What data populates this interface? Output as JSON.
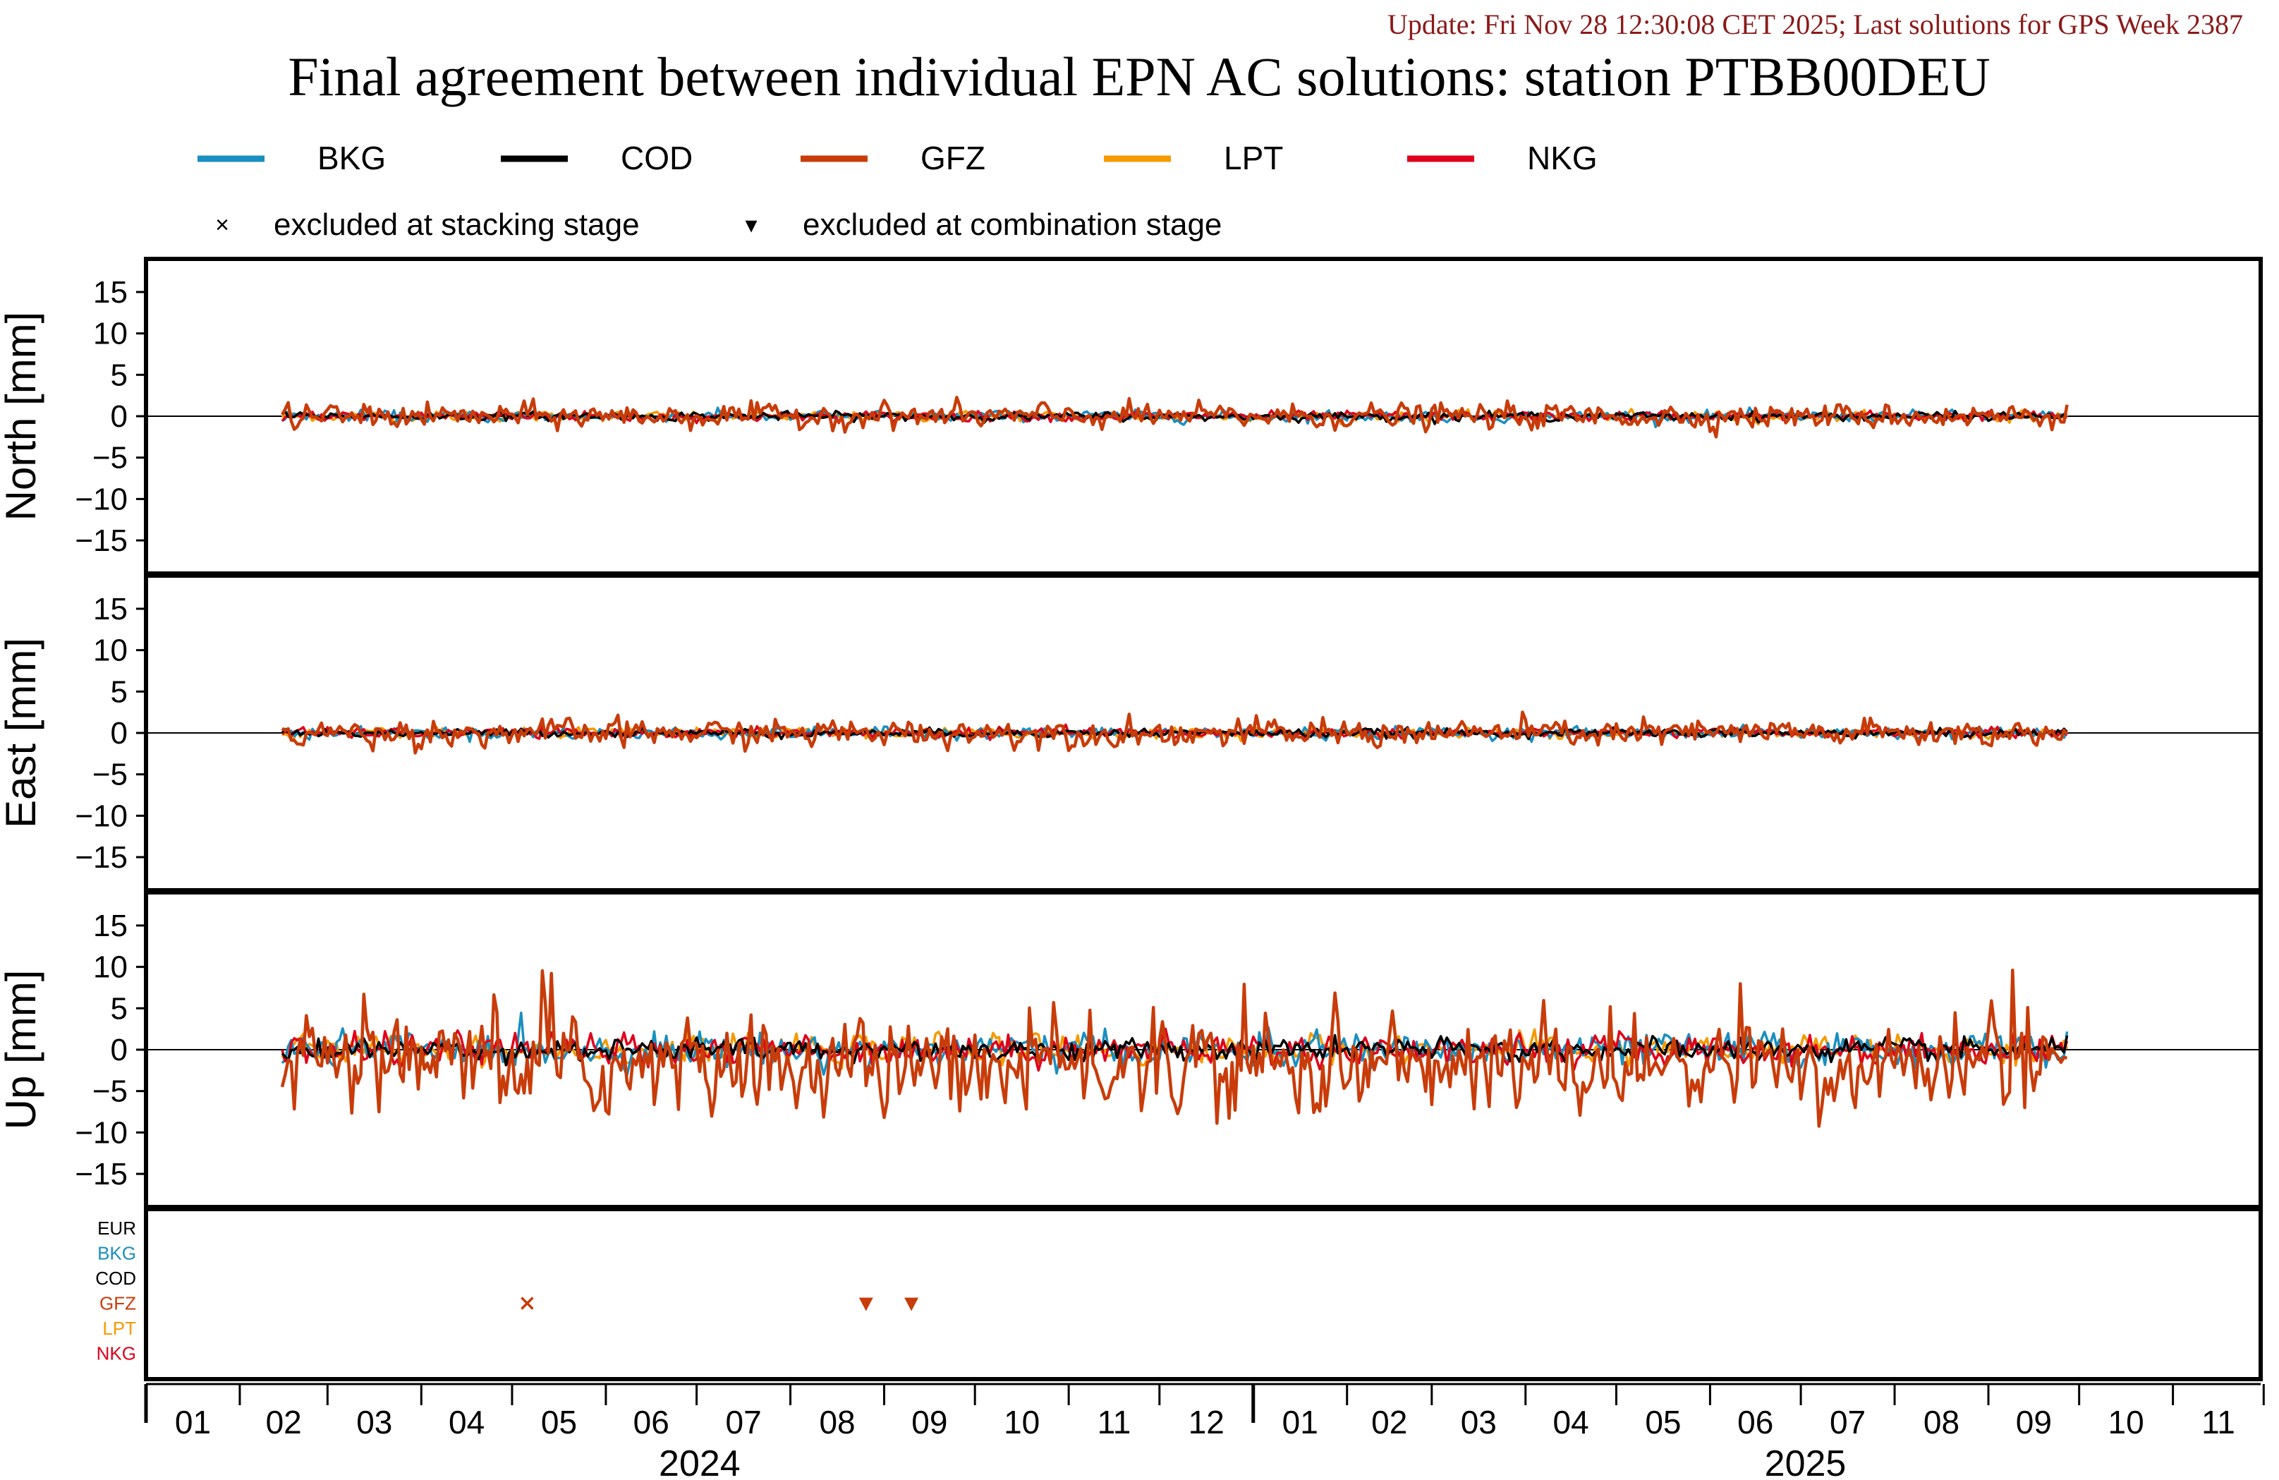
{
  "update_text": "Update: Fri Nov 28 12:30:08 CET 2025; Last solutions for GPS Week 2387",
  "title": "Final agreement between individual EPN AC solutions: station PTBB00DEU",
  "legend": {
    "series": [
      {
        "name": "BKG",
        "color": "#1a8fc0"
      },
      {
        "name": "COD",
        "color": "#000000"
      },
      {
        "name": "GFZ",
        "color": "#c83c0a"
      },
      {
        "name": "LPT",
        "color": "#f59a00"
      },
      {
        "name": "NKG",
        "color": "#e0001b"
      }
    ],
    "markers": [
      {
        "symbol": "×",
        "label": "excluded at stacking stage"
      },
      {
        "symbol": "▾",
        "label": "excluded at combination stage"
      }
    ]
  },
  "chart_data": {
    "type": "line",
    "x_axis": {
      "start": "2024-01-01",
      "end": "2025-11-30",
      "month_ticks": [
        "01",
        "02",
        "03",
        "04",
        "05",
        "06",
        "07",
        "08",
        "09",
        "10",
        "11",
        "12",
        "01",
        "02",
        "03",
        "04",
        "05",
        "06",
        "07",
        "08",
        "09",
        "10",
        "11"
      ],
      "year_labels": [
        "2024",
        "2025"
      ],
      "data_range": [
        "2024-02-15",
        "2025-09-27"
      ]
    },
    "panels": [
      {
        "ylabel": "North [mm]",
        "ylim": [
          -19,
          19
        ],
        "yticks": [
          15,
          10,
          5,
          0,
          -5,
          -10,
          -15
        ],
        "amplitude": {
          "BKG": 0.4,
          "COD": 0.3,
          "GFZ": 0.9,
          "LPT": 0.35,
          "NKG": 0.35
        }
      },
      {
        "ylabel": "East [mm]",
        "ylim": [
          -19,
          19
        ],
        "yticks": [
          15,
          10,
          5,
          0,
          -5,
          -10,
          -15
        ],
        "amplitude": {
          "BKG": 0.4,
          "COD": 0.3,
          "GFZ": 1.0,
          "LPT": 0.35,
          "NKG": 0.35
        }
      },
      {
        "ylabel": "Up [mm]",
        "ylim": [
          -19,
          19
        ],
        "yticks": [
          15,
          10,
          5,
          0,
          -5,
          -10,
          -15
        ],
        "amplitude": {
          "BKG": 1.2,
          "COD": 0.8,
          "GFZ": 3.5,
          "LPT": 1.0,
          "NKG": 1.1
        }
      }
    ],
    "exclusion_panel": {
      "rows": [
        {
          "name": "EUR",
          "color": "#000000"
        },
        {
          "name": "BKG",
          "color": "#1a8fc0"
        },
        {
          "name": "COD",
          "color": "#000000"
        },
        {
          "name": "GFZ",
          "color": "#c83c0a"
        },
        {
          "name": "LPT",
          "color": "#f59a00"
        },
        {
          "name": "NKG",
          "color": "#e0001b"
        }
      ],
      "events": [
        {
          "ac": "GFZ",
          "date": "2024-05-06",
          "stage": "stacking"
        },
        {
          "ac": "GFZ",
          "date": "2024-08-26",
          "stage": "combination"
        },
        {
          "ac": "GFZ",
          "date": "2024-09-10",
          "stage": "combination"
        }
      ]
    }
  }
}
